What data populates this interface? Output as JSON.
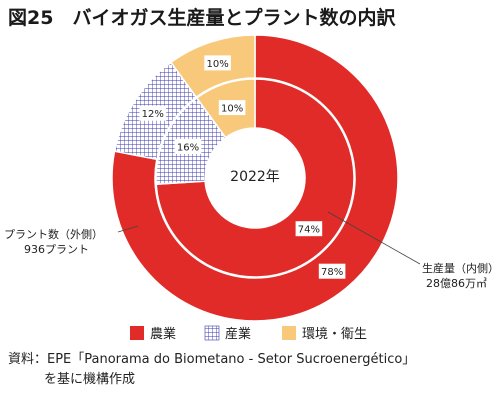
{
  "title": "図25　バイオガス生産量とプラント数の内訳",
  "colors": {
    "agriculture": "#e12b28",
    "industry_grid": "#3a3ab0",
    "industry_bg": "#ffffff",
    "environment": "#f8c97a",
    "border": "#ffffff"
  },
  "chart_data": {
    "type": "pie",
    "subtype": "double-donut",
    "center_label": "2022年",
    "categories": [
      "農業",
      "産業",
      "環境・衛生"
    ],
    "series": [
      {
        "name": "プラント数（外側）",
        "ring": "outer",
        "annotation": [
          "プラント数（外側）",
          "936プラント"
        ],
        "values": [
          78,
          12,
          10
        ],
        "labels": [
          "78%",
          "12%",
          "10%"
        ]
      },
      {
        "name": "生産量（内側）",
        "ring": "inner",
        "annotation": [
          "生産量（内側）",
          "28億86万㎥"
        ],
        "values": [
          74,
          16,
          10
        ],
        "labels": [
          "74%",
          "16%",
          "10%"
        ]
      }
    ],
    "legend": {
      "placement": "bottom",
      "items": [
        {
          "label": "農業",
          "pattern": "solid-red"
        },
        {
          "label": "産業",
          "pattern": "blue-grid"
        },
        {
          "label": "環境・衛生",
          "pattern": "solid-orange"
        }
      ]
    }
  },
  "source": {
    "line1": "資料：EPE「Panorama do Biometano - Setor Sucroenergético」",
    "line2": "を基に機構作成"
  }
}
